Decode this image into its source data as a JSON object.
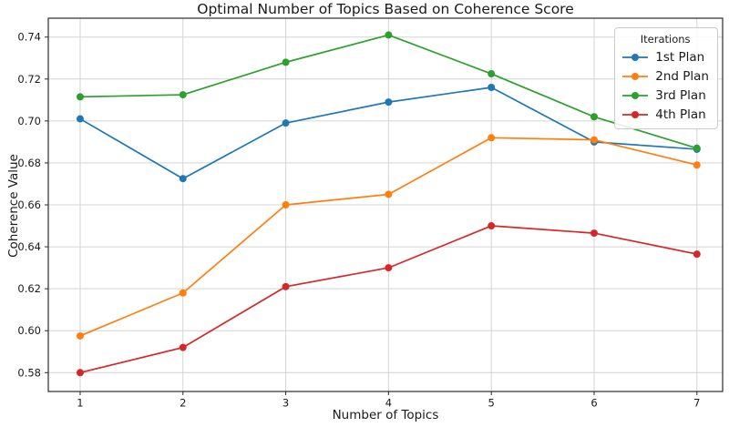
{
  "chart_data": {
    "type": "line",
    "title": "Optimal Number of Topics Based on Coherence Score",
    "xlabel": "Number of Topics",
    "ylabel": "Coherence Value",
    "legend_title": "Iterations",
    "legend_position": "upper right",
    "grid": true,
    "x": [
      1,
      2,
      3,
      4,
      5,
      6,
      7
    ],
    "xlim": [
      0.69,
      7.25
    ],
    "ylim": [
      0.571,
      0.749
    ],
    "yticks": [
      0.58,
      0.6,
      0.62,
      0.64,
      0.66,
      0.68,
      0.7,
      0.72,
      0.74
    ],
    "series": [
      {
        "name": "1st Plan",
        "color": "#1f77b4",
        "marker": "circle",
        "values": [
          0.701,
          0.6725,
          0.699,
          0.709,
          0.716,
          0.69,
          0.6865
        ]
      },
      {
        "name": "2nd Plan",
        "color": "#ff7f0e",
        "marker": "circle",
        "values": [
          0.5975,
          0.618,
          0.66,
          0.665,
          0.692,
          0.691,
          0.679
        ]
      },
      {
        "name": "3rd Plan",
        "color": "#2ca02c",
        "marker": "circle",
        "values": [
          0.7115,
          0.7125,
          0.728,
          0.741,
          0.7225,
          0.702,
          0.687
        ]
      },
      {
        "name": "4th Plan",
        "color": "#d62728",
        "marker": "circle",
        "values": [
          0.58,
          0.592,
          0.621,
          0.63,
          0.65,
          0.6465,
          0.6365
        ]
      }
    ],
    "style": {
      "grid_color": "#d4d4d4",
      "spine_color": "#2b2b2b",
      "tick_label_color": "#1a1a1a"
    }
  }
}
